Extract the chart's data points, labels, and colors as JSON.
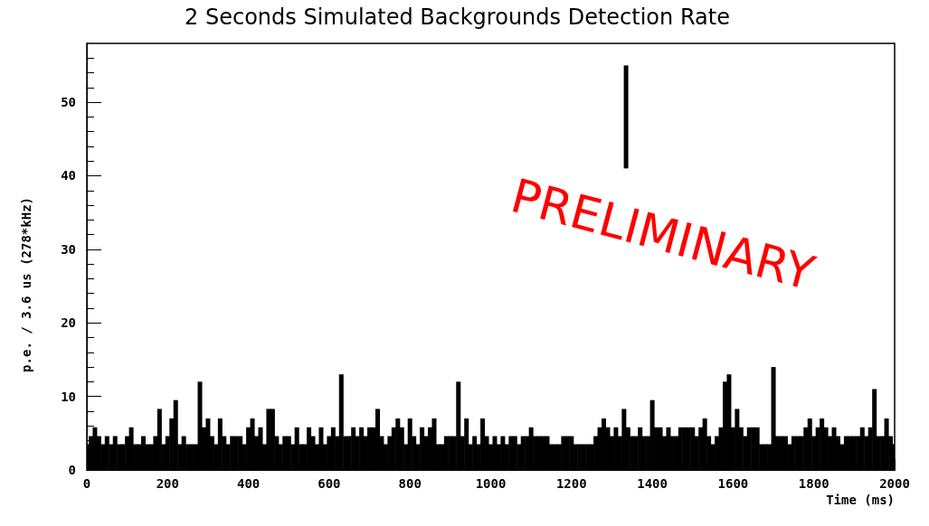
{
  "chart_data": {
    "type": "bar",
    "title": "2 Seconds Simulated Backgrounds Detection Rate",
    "xlabel": "Time (ms)",
    "ylabel": "p.e. / 3.6 us (278*kHz)",
    "annotations": [
      "PRELIMINARY"
    ],
    "x": [
      0,
      10,
      20,
      30,
      40,
      50,
      60,
      70,
      80,
      90,
      100,
      110,
      120,
      130,
      140,
      150,
      160,
      170,
      180,
      190,
      200,
      210,
      220,
      230,
      240,
      250,
      260,
      270,
      280,
      290,
      300,
      310,
      320,
      330,
      340,
      350,
      360,
      370,
      380,
      390,
      400,
      410,
      420,
      430,
      440,
      450,
      460,
      470,
      480,
      490,
      500,
      510,
      520,
      530,
      540,
      550,
      560,
      570,
      580,
      590,
      600,
      610,
      620,
      630,
      640,
      650,
      660,
      670,
      680,
      690,
      700,
      710,
      720,
      730,
      740,
      750,
      760,
      770,
      780,
      790,
      800,
      810,
      820,
      830,
      840,
      850,
      860,
      870,
      880,
      890,
      900,
      910,
      920,
      930,
      940,
      950,
      960,
      970,
      980,
      990,
      1000,
      1010,
      1020,
      1030,
      1040,
      1050,
      1060,
      1070,
      1080,
      1090,
      1100,
      1110,
      1120,
      1130,
      1140,
      1150,
      1160,
      1170,
      1180,
      1190,
      1200,
      1210,
      1220,
      1230,
      1240,
      1250,
      1260,
      1270,
      1280,
      1290,
      1300,
      1310,
      1320,
      1330,
      1335,
      1340,
      1350,
      1360,
      1370,
      1380,
      1390,
      1400,
      1410,
      1420,
      1430,
      1440,
      1450,
      1460,
      1470,
      1480,
      1490,
      1500,
      1510,
      1520,
      1530,
      1540,
      1550,
      1560,
      1570,
      1580,
      1590,
      1600,
      1610,
      1620,
      1630,
      1640,
      1650,
      1660,
      1670,
      1680,
      1690,
      1700,
      1710,
      1720,
      1730,
      1740,
      1750,
      1760,
      1770,
      1780,
      1790,
      1800,
      1810,
      1820,
      1830,
      1840,
      1850,
      1860,
      1870,
      1880,
      1890,
      1900,
      1910,
      1920,
      1930,
      1940,
      1950,
      1960,
      1970,
      1980,
      1990,
      2000
    ],
    "values": [
      3.5,
      4.6,
      5.8,
      4.6,
      3.5,
      4.6,
      3.5,
      4.6,
      3.5,
      3.5,
      4.6,
      5.8,
      3.5,
      3.5,
      4.6,
      3.5,
      3.5,
      4.6,
      8.3,
      3.5,
      4.6,
      7,
      9.5,
      3.5,
      4.6,
      3.5,
      3.5,
      3.5,
      12,
      5.8,
      7,
      4.6,
      3.5,
      7,
      4.6,
      3.5,
      4.6,
      4.6,
      4.6,
      3.5,
      5.8,
      7,
      4.6,
      5.8,
      3.5,
      8.3,
      8.3,
      4.6,
      3.5,
      4.6,
      4.6,
      3.5,
      5.8,
      3.5,
      3.5,
      5.8,
      4.6,
      3.5,
      5.8,
      3.5,
      4.6,
      5.8,
      4.6,
      13,
      4.6,
      4.6,
      5.8,
      4.6,
      5.8,
      4.6,
      5.8,
      5.8,
      8.3,
      4.6,
      3.5,
      4.6,
      5.8,
      7,
      5.8,
      3.5,
      7,
      4.6,
      3.5,
      5.8,
      4.6,
      5.8,
      7,
      3.5,
      3.5,
      4.6,
      4.6,
      4.6,
      12,
      4.6,
      7,
      3.5,
      4.6,
      3.5,
      7,
      4.6,
      3.5,
      4.6,
      3.5,
      4.6,
      3.5,
      4.6,
      4.6,
      3.5,
      4.6,
      4.6,
      5.8,
      4.6,
      4.6,
      4.6,
      4.6,
      3.5,
      3.5,
      3.5,
      4.6,
      4.6,
      4.6,
      3.5,
      3.5,
      3.5,
      3.5,
      3.5,
      4.6,
      5.8,
      7,
      5.8,
      4.6,
      5.8,
      4.6,
      8.3,
      14,
      5.8,
      4.6,
      4.6,
      5.8,
      4.6,
      4.6,
      9.5,
      5.8,
      5.8,
      4.6,
      5.8,
      4.6,
      4.6,
      5.8,
      5.8,
      5.8,
      5.8,
      4.6,
      5.8,
      7,
      4.6,
      3.5,
      4.6,
      5.8,
      12,
      13,
      5.8,
      8.3,
      5.8,
      4.6,
      5.8,
      5.8,
      5.8,
      3.5,
      3.5,
      3.5,
      14,
      4.6,
      4.6,
      4.6,
      3.5,
      4.6,
      4.6,
      4.6,
      5.8,
      7,
      4.6,
      5.8,
      7,
      5.8,
      4.6,
      5.8,
      4.6,
      3.5,
      4.6,
      4.6,
      4.6,
      4.6,
      5.8,
      4.6,
      5.8,
      11,
      4.6,
      4.6,
      7,
      4.6,
      3.5
    ],
    "base": [
      0,
      0,
      0,
      0,
      0,
      0,
      0,
      0,
      0,
      0,
      0,
      0,
      0,
      0,
      0,
      0,
      0,
      0,
      0,
      0,
      0,
      0,
      0,
      0,
      0,
      0,
      0,
      0,
      0,
      0,
      0,
      0,
      0,
      0,
      0,
      0,
      0,
      0,
      0,
      0,
      0,
      0,
      0,
      0,
      0,
      0,
      0,
      0,
      0,
      0,
      0,
      0,
      0,
      0,
      0,
      0,
      0,
      0,
      0,
      0,
      0,
      0,
      0,
      0,
      0,
      0,
      0,
      0,
      0,
      0,
      0,
      0,
      0,
      0,
      0,
      0,
      0,
      0,
      0,
      0,
      0,
      0,
      0,
      0,
      0,
      0,
      0,
      0,
      0,
      0,
      0,
      0,
      0,
      0,
      0,
      0,
      0,
      0,
      0,
      0,
      0,
      0,
      0,
      0,
      0,
      0,
      0,
      0,
      0,
      0,
      0,
      0,
      0,
      0,
      0,
      0,
      0,
      0,
      0,
      0,
      0,
      0,
      0,
      0,
      0,
      0,
      0,
      0,
      0,
      0,
      0,
      0,
      0,
      0,
      41,
      0,
      0,
      0,
      0,
      0,
      0,
      0,
      0,
      0,
      0,
      0,
      0,
      0,
      0,
      0,
      0,
      0,
      0,
      0,
      0,
      0,
      0,
      0,
      0,
      0,
      0,
      0,
      0,
      0,
      0,
      0,
      0,
      0,
      0,
      0,
      0,
      0,
      0,
      0,
      0,
      0,
      0,
      0,
      0,
      0,
      0,
      0,
      0,
      0,
      0,
      0,
      0,
      0,
      0,
      0,
      0,
      0,
      0,
      0,
      0,
      0,
      0,
      0,
      0,
      0,
      0,
      0
    ],
    "color": "#000000",
    "xlim": [
      0,
      2000
    ],
    "xticks": [
      0,
      200,
      400,
      600,
      800,
      1000,
      1200,
      1400,
      1600,
      1800,
      2000
    ],
    "ylim": [
      0,
      58
    ],
    "yticks": [
      0,
      10,
      20,
      30,
      40,
      50
    ],
    "grid": false
  }
}
